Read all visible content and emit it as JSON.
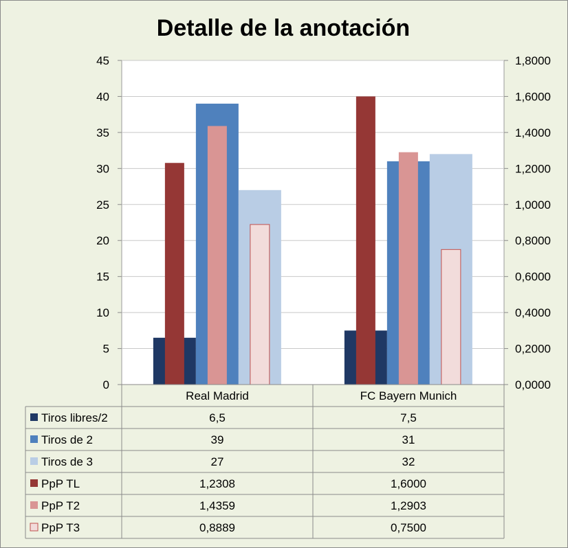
{
  "chart_data": {
    "type": "bar",
    "title": "Detalle de la anotación",
    "categories": [
      "Real Madrid",
      "FC Bayern Munich"
    ],
    "primary_axis": {
      "ylim": [
        0,
        45
      ],
      "ticks": [
        0,
        5,
        10,
        15,
        20,
        25,
        30,
        35,
        40,
        45
      ],
      "tick_labels": [
        "0",
        "5",
        "10",
        "15",
        "20",
        "25",
        "30",
        "35",
        "40",
        "45"
      ]
    },
    "secondary_axis": {
      "ylim": [
        0,
        1.8
      ],
      "ticks": [
        0,
        0.2,
        0.4,
        0.6,
        0.8,
        1.0,
        1.2,
        1.4,
        1.6,
        1.8
      ],
      "tick_labels": [
        "0,0000",
        "0,2000",
        "0,4000",
        "0,6000",
        "0,8000",
        "1,0000",
        "1,2000",
        "1,4000",
        "1,6000",
        "1,8000"
      ]
    },
    "series": [
      {
        "name": "Tiros libres/2",
        "axis": "primary",
        "values": [
          6.5,
          7.5
        ],
        "labels": [
          "6,5",
          "7,5"
        ],
        "color": "#1f3864"
      },
      {
        "name": "Tiros de 2",
        "axis": "primary",
        "values": [
          39,
          31
        ],
        "labels": [
          "39",
          "31"
        ],
        "color": "#4f81bd"
      },
      {
        "name": "Tiros de 3",
        "axis": "primary",
        "values": [
          27,
          32
        ],
        "labels": [
          "27",
          "32"
        ],
        "color": "#b9cde5"
      },
      {
        "name": "PpP TL",
        "axis": "secondary",
        "values": [
          1.2308,
          1.6
        ],
        "labels": [
          "1,2308",
          "1,6000"
        ],
        "color": "#953735"
      },
      {
        "name": "PpP T2",
        "axis": "secondary",
        "values": [
          1.4359,
          1.2903
        ],
        "labels": [
          "1,4359",
          "1,2903"
        ],
        "color": "#d99594"
      },
      {
        "name": "PpP T3",
        "axis": "secondary",
        "values": [
          0.8889,
          0.75
        ],
        "labels": [
          "0,8889",
          "0,7500"
        ],
        "color": "#f2dcdb",
        "stroke": "#c0504d"
      }
    ],
    "grid": true,
    "legend": "data-table-left"
  }
}
